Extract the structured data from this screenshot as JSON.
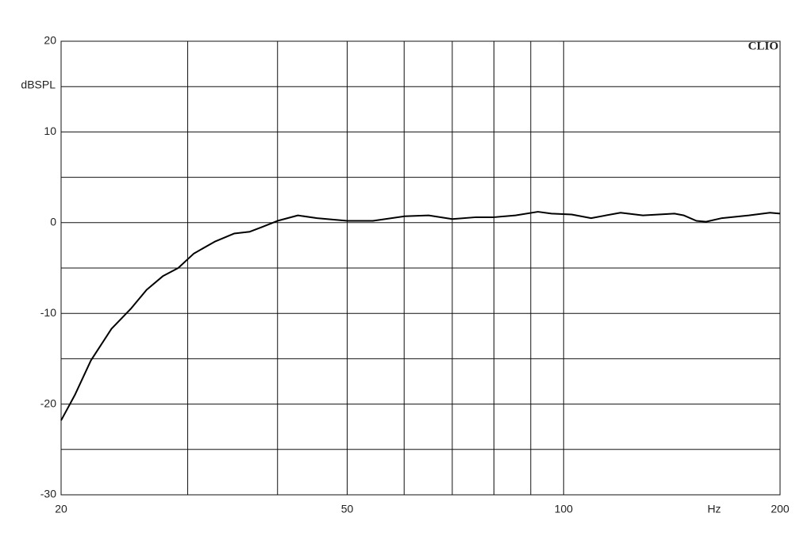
{
  "chart_data": {
    "type": "line",
    "brand": "CLIO",
    "y_label": "dBSPL",
    "x_label": "Hz",
    "x_scale": "log",
    "xlim": [
      20,
      200
    ],
    "ylim": [
      -30,
      20
    ],
    "xticks": [
      20,
      50,
      100,
      200
    ],
    "x_minor_grid": [
      30,
      40,
      60,
      70,
      80,
      90
    ],
    "yticks": [
      -30,
      -20,
      -10,
      0,
      10,
      20
    ],
    "y_minor_grid": [
      -25,
      -15,
      -5,
      5,
      15
    ],
    "grid": true,
    "series": [
      {
        "color": "#000000",
        "x": [
          20,
          20.9,
          22.0,
          23.5,
          25.0,
          26.3,
          27.7,
          29.1,
          30.6,
          32.7,
          34.8,
          36.6,
          38.0,
          40,
          42.7,
          45.4,
          50,
          54.3,
          60,
          64.9,
          70,
          75.5,
          80,
          85.7,
          92.1,
          96.2,
          102.6,
          109.2,
          120,
          128.9,
          142.6,
          147,
          153,
          157.8,
          166,
          181,
          193.6,
          200
        ],
        "values": [
          -21.8,
          -19.0,
          -15.2,
          -11.7,
          -9.5,
          -7.4,
          -5.9,
          -5.0,
          -3.4,
          -2.1,
          -1.2,
          -1.0,
          -0.5,
          0.2,
          0.8,
          0.5,
          0.2,
          0.2,
          0.7,
          0.8,
          0.4,
          0.6,
          0.6,
          0.8,
          1.2,
          1.0,
          0.9,
          0.5,
          1.1,
          0.8,
          1.0,
          0.8,
          0.2,
          0.1,
          0.5,
          0.8,
          1.1,
          1.0
        ]
      }
    ]
  }
}
